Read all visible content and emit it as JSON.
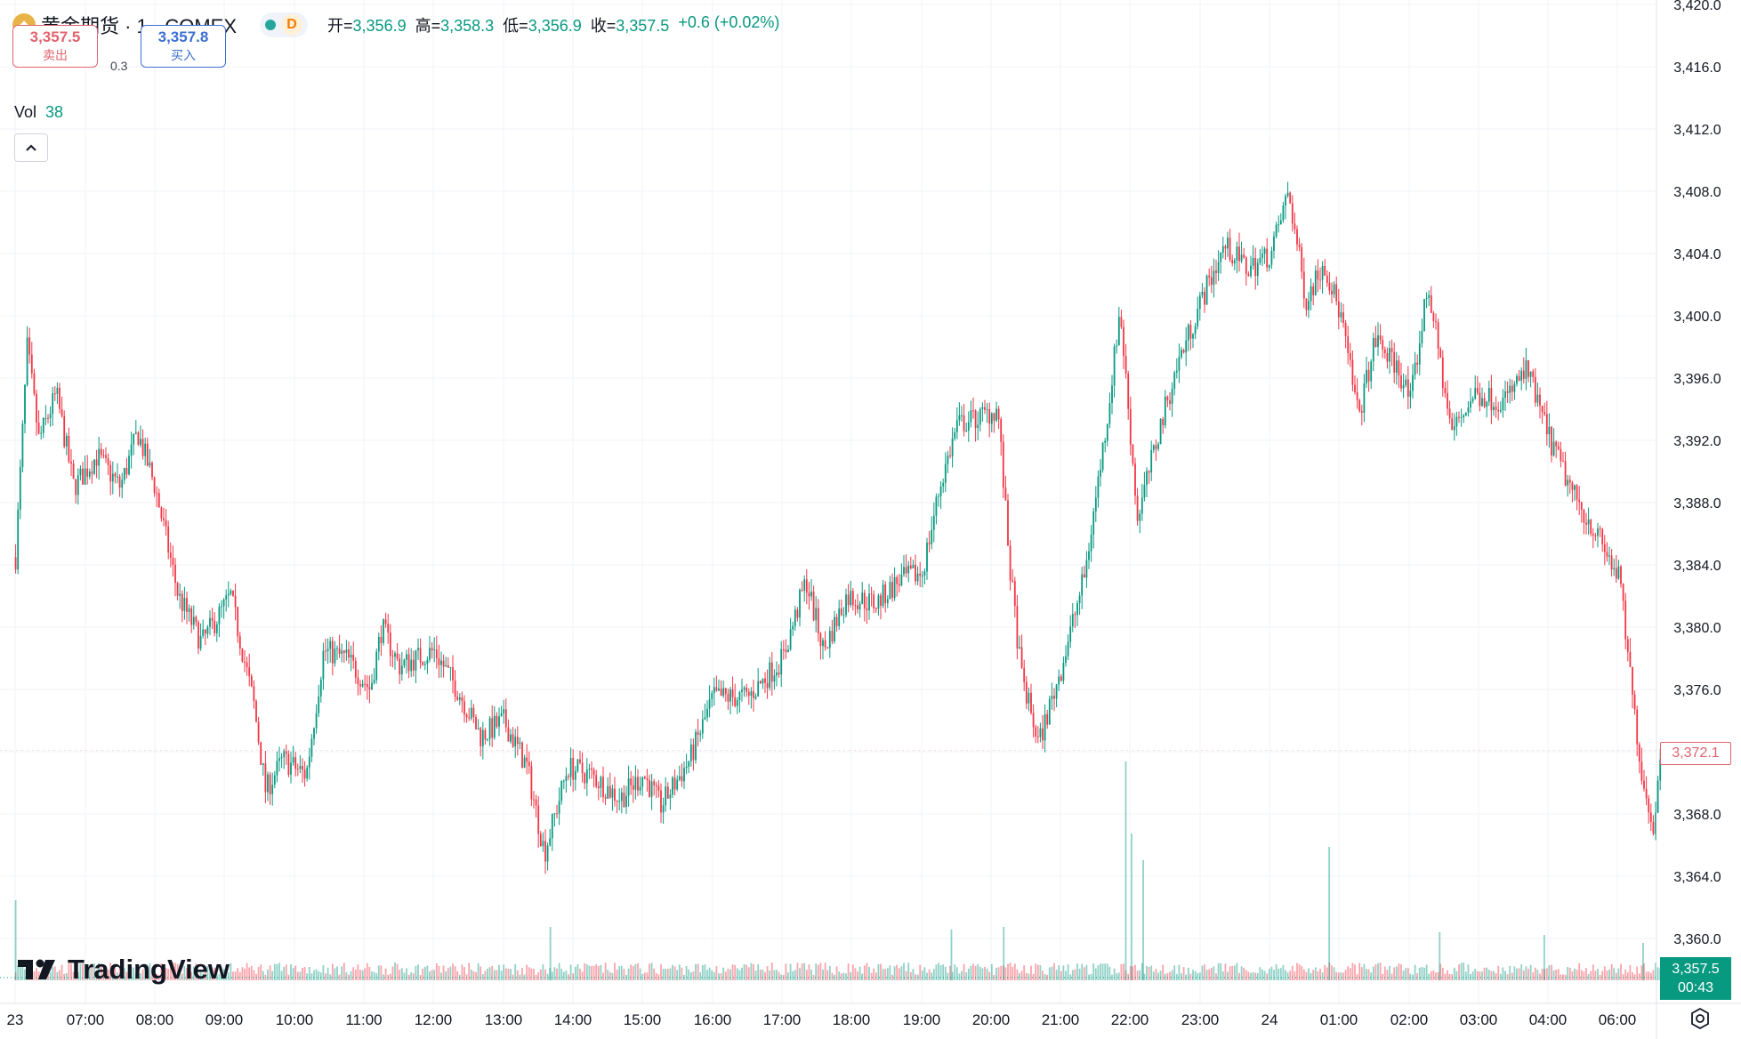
{
  "header": {
    "symbol": "黄金期货 · 1 · COMEX",
    "interval_badge": "D",
    "ohlc": [
      {
        "k": "开=",
        "v": "3,356.9"
      },
      {
        "k": "高=",
        "v": "3,358.3"
      },
      {
        "k": "低=",
        "v": "3,356.9"
      },
      {
        "k": "收=",
        "v": "3,357.5"
      }
    ],
    "change": "+0.6 (+0.02%)"
  },
  "trade": {
    "sell_price": "3,357.5",
    "sell_label": "卖出",
    "spread": "0.3",
    "buy_price": "3,357.8",
    "buy_label": "买入"
  },
  "volume": {
    "label": "Vol",
    "value": "38"
  },
  "branding": {
    "name": "TradingView"
  },
  "price_tags": {
    "crosshair_price": "3,372.1",
    "last_price": "3,357.5",
    "countdown": "00:43"
  },
  "colors": {
    "up": "#089981",
    "down": "#f23645",
    "grid": "#f0f3fa",
    "text": "#131722"
  },
  "chart_data": {
    "type": "candlestick",
    "interval": "1",
    "ylim": [
      3358,
      3420
    ],
    "y_ticks": [
      "3,420.0",
      "3,416.0",
      "3,412.0",
      "3,408.0",
      "3,404.0",
      "3,400.0",
      "3,396.0",
      "3,392.0",
      "3,388.0",
      "3,384.0",
      "3,380.0",
      "3,376.0",
      "3,372.0",
      "3,368.0",
      "3,364.0",
      "3,360.0"
    ],
    "x_ticks": [
      "23",
      "07:00",
      "08:00",
      "09:00",
      "10:00",
      "11:00",
      "12:00",
      "13:00",
      "14:00",
      "15:00",
      "16:00",
      "17:00",
      "18:00",
      "19:00",
      "20:00",
      "21:00",
      "22:00",
      "23:00",
      "24",
      "01:00",
      "02:00",
      "03:00",
      "04:00",
      "06:00"
    ],
    "grid": true,
    "price_path": [
      {
        "t": "06:00",
        "price": 3384.5
      },
      {
        "t": "06:10",
        "price": 3398.0
      },
      {
        "t": "06:20",
        "price": 3392.0
      },
      {
        "t": "06:35",
        "price": 3395.0
      },
      {
        "t": "06:50",
        "price": 3389.0
      },
      {
        "t": "07:10",
        "price": 3391.0
      },
      {
        "t": "07:30",
        "price": 3389.0
      },
      {
        "t": "07:45",
        "price": 3392.5
      },
      {
        "t": "08:00",
        "price": 3389.0
      },
      {
        "t": "08:20",
        "price": 3382.0
      },
      {
        "t": "08:40",
        "price": 3379.0
      },
      {
        "t": "09:05",
        "price": 3382.0
      },
      {
        "t": "09:25",
        "price": 3375.0
      },
      {
        "t": "09:35",
        "price": 3369.5
      },
      {
        "t": "09:50",
        "price": 3371.5
      },
      {
        "t": "10:10",
        "price": 3370.5
      },
      {
        "t": "10:25",
        "price": 3378.5
      },
      {
        "t": "10:45",
        "price": 3378.0
      },
      {
        "t": "11:05",
        "price": 3376.0
      },
      {
        "t": "11:15",
        "price": 3380.0
      },
      {
        "t": "11:30",
        "price": 3377.5
      },
      {
        "t": "12:00",
        "price": 3378.5
      },
      {
        "t": "12:20",
        "price": 3376.0
      },
      {
        "t": "12:40",
        "price": 3373.0
      },
      {
        "t": "13:00",
        "price": 3374.0
      },
      {
        "t": "13:20",
        "price": 3371.0
      },
      {
        "t": "13:35",
        "price": 3365.5
      },
      {
        "t": "13:55",
        "price": 3371.0
      },
      {
        "t": "14:15",
        "price": 3370.5
      },
      {
        "t": "14:40",
        "price": 3369.0
      },
      {
        "t": "15:00",
        "price": 3370.5
      },
      {
        "t": "15:15",
        "price": 3368.5
      },
      {
        "t": "15:40",
        "price": 3371.5
      },
      {
        "t": "16:00",
        "price": 3375.5
      },
      {
        "t": "16:30",
        "price": 3375.5
      },
      {
        "t": "17:00",
        "price": 3378.0
      },
      {
        "t": "17:20",
        "price": 3383.0
      },
      {
        "t": "17:35",
        "price": 3378.5
      },
      {
        "t": "17:55",
        "price": 3382.0
      },
      {
        "t": "18:20",
        "price": 3381.5
      },
      {
        "t": "18:40",
        "price": 3383.0
      },
      {
        "t": "19:00",
        "price": 3383.5
      },
      {
        "t": "19:15",
        "price": 3389.0
      },
      {
        "t": "19:30",
        "price": 3393.0
      },
      {
        "t": "19:50",
        "price": 3393.5
      },
      {
        "t": "20:05",
        "price": 3394.0
      },
      {
        "t": "20:15",
        "price": 3384.0
      },
      {
        "t": "20:25",
        "price": 3377.0
      },
      {
        "t": "20:40",
        "price": 3372.5
      },
      {
        "t": "21:00",
        "price": 3377.5
      },
      {
        "t": "21:20",
        "price": 3383.5
      },
      {
        "t": "21:40",
        "price": 3394.0
      },
      {
        "t": "21:50",
        "price": 3400.5
      },
      {
        "t": "22:05",
        "price": 3387.0
      },
      {
        "t": "22:25",
        "price": 3393.0
      },
      {
        "t": "22:40",
        "price": 3397.0
      },
      {
        "t": "23:00",
        "price": 3401.0
      },
      {
        "t": "23:20",
        "price": 3404.5
      },
      {
        "t": "23:40",
        "price": 3403.0
      },
      {
        "t": "00:00",
        "price": 3404.0
      },
      {
        "t": "00:15",
        "price": 3408.0
      },
      {
        "t": "00:30",
        "price": 3401.0
      },
      {
        "t": "00:45",
        "price": 3403.5
      },
      {
        "t": "01:00",
        "price": 3400.0
      },
      {
        "t": "01:15",
        "price": 3393.5
      },
      {
        "t": "01:30",
        "price": 3398.5
      },
      {
        "t": "01:50",
        "price": 3396.5
      },
      {
        "t": "02:00",
        "price": 3394.5
      },
      {
        "t": "02:15",
        "price": 3402.0
      },
      {
        "t": "02:35",
        "price": 3392.5
      },
      {
        "t": "02:55",
        "price": 3395.0
      },
      {
        "t": "03:20",
        "price": 3394.5
      },
      {
        "t": "03:40",
        "price": 3396.5
      },
      {
        "t": "04:00",
        "price": 3392.0
      },
      {
        "t": "04:20",
        "price": 3388.5
      },
      {
        "t": "04:40",
        "price": 3386.0
      },
      {
        "t": "05:00",
        "price": 3383.0
      },
      {
        "t": "05:10",
        "price": 3376.0
      },
      {
        "t": "05:20",
        "price": 3370.0
      },
      {
        "t": "05:30",
        "price": 3367.0
      },
      {
        "t": "05:35",
        "price": 3372.1
      }
    ],
    "volume_spikes": [
      {
        "t": "06:00",
        "volume": 30
      },
      {
        "t": "13:40",
        "volume": 20
      },
      {
        "t": "19:25",
        "volume": 19
      },
      {
        "t": "20:10",
        "volume": 20
      },
      {
        "t": "21:55",
        "volume": 82
      },
      {
        "t": "22:00",
        "volume": 55
      },
      {
        "t": "22:10",
        "volume": 45
      },
      {
        "t": "00:50",
        "volume": 50
      },
      {
        "t": "02:25",
        "volume": 18
      },
      {
        "t": "03:55",
        "volume": 17
      },
      {
        "t": "05:20",
        "volume": 14
      }
    ]
  }
}
